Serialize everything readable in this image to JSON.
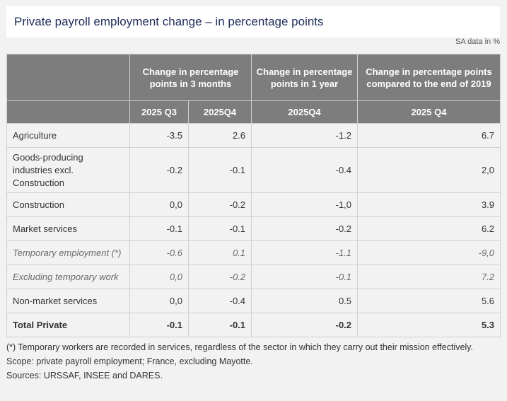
{
  "title": "Private payroll employment change – in percentage points",
  "unit_note": "SA data in %",
  "header": {
    "group_3m": "Change in percentage points in 3 months",
    "group_1y": "Change in percentage points in 1 year",
    "group_2019": "Change in percentage points compared to the end of 2019",
    "col_q3": "2025 Q3",
    "col_q4a": "2025Q4",
    "col_q4b": "2025Q4",
    "col_q4c": "2025 Q4"
  },
  "rows": [
    {
      "label": "Agriculture",
      "v1": "-3.5",
      "v2": "2.6",
      "v3": "-1.2",
      "v4": "6.7"
    },
    {
      "label": "Goods-producing industries excl. Construction",
      "v1": "-0.2",
      "v2": "-0.1",
      "v3": "-0.4",
      "v4": "2,0"
    },
    {
      "label": "Construction",
      "v1": "0,0",
      "v2": "-0.2",
      "v3": "-1,0",
      "v4": "3.9"
    },
    {
      "label": "Market services",
      "v1": "-0.1",
      "v2": "-0.1",
      "v3": "-0.2",
      "v4": "6.2"
    },
    {
      "label": "Temporary employment (*)",
      "v1": "-0.6",
      "v2": "0.1",
      "v3": "-1.1",
      "v4": "-9,0"
    },
    {
      "label": "Excluding temporary work",
      "v1": "0,0",
      "v2": "-0.2",
      "v3": "-0.1",
      "v4": "7.2"
    },
    {
      "label": "Non-market services",
      "v1": "0,0",
      "v2": "-0.4",
      "v3": "0.5",
      "v4": "5.6"
    },
    {
      "label": "Total Private",
      "v1": "-0.1",
      "v2": "-0.1",
      "v3": "-0.2",
      "v4": "5.3"
    }
  ],
  "notes": {
    "footnote": "(*) Temporary workers are recorded in services, regardless of the sector in which they carry out their mission effectively.",
    "scope": "Scope: private payroll employment; France, excluding Mayotte.",
    "sources": "Sources: URSSAF, INSEE and DARES."
  }
}
